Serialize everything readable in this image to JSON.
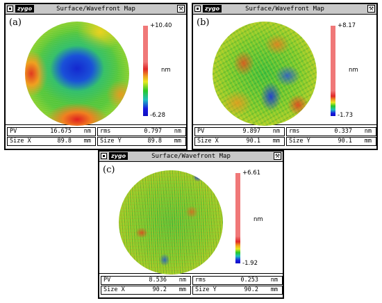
{
  "window_title": "Surface/Wavefront Map",
  "logo_text": "zygo",
  "unit": "nm",
  "panels": [
    {
      "label": "(a)",
      "scale_max": "+10.40",
      "scale_min": "-6.28",
      "pv": {
        "label": "PV",
        "value": "16.675",
        "unit": "nm"
      },
      "rms": {
        "label": "rms",
        "value": "0.797",
        "unit": "nm"
      },
      "size_x": {
        "label": "Size X",
        "value": "89.8",
        "unit": "mm"
      },
      "size_y": {
        "label": "Size Y",
        "value": "89.8",
        "unit": "mm"
      }
    },
    {
      "label": "(b)",
      "scale_max": "+8.17",
      "scale_min": "-1.73",
      "pv": {
        "label": "PV",
        "value": "9.897",
        "unit": "nm"
      },
      "rms": {
        "label": "rms",
        "value": "0.337",
        "unit": "nm"
      },
      "size_x": {
        "label": "Size X",
        "value": "90.1",
        "unit": "mm"
      },
      "size_y": {
        "label": "Size Y",
        "value": "90.1",
        "unit": "mm"
      }
    },
    {
      "label": "(c)",
      "scale_max": "+6.61",
      "scale_min": "-1.92",
      "pv": {
        "label": "PV",
        "value": "8.536",
        "unit": "nm"
      },
      "rms": {
        "label": "rms",
        "value": "0.253",
        "unit": "nm"
      },
      "size_x": {
        "label": "Size X",
        "value": "90.2",
        "unit": "mm"
      },
      "size_y": {
        "label": "Size Y",
        "value": "90.2",
        "unit": "mm"
      }
    }
  ],
  "icons": {
    "menu": "window-menu-icon",
    "tool": "wrench-icon"
  },
  "colors": {
    "scale_top": "#f07878",
    "scale_mid_red": "#e03030",
    "scale_orange": "#f0a020",
    "scale_yellow": "#e8e820",
    "scale_green": "#20c020",
    "scale_cyan": "#20c0c0",
    "scale_blue": "#1010d0"
  }
}
